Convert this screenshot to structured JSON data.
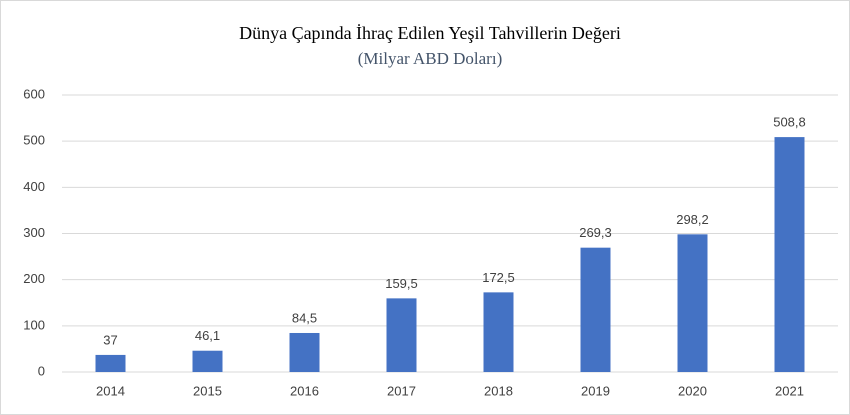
{
  "chart_data": {
    "type": "bar",
    "title": "Dünya Çapında İhraç Edilen Yeşil Tahvillerin Değeri",
    "subtitle": "(Milyar ABD Doları)",
    "categories": [
      "2014",
      "2015",
      "2016",
      "2017",
      "2018",
      "2019",
      "2020",
      "2021"
    ],
    "values": [
      37,
      46.1,
      84.5,
      159.5,
      172.5,
      269.3,
      298.2,
      508.8
    ],
    "value_labels": [
      "37",
      "46,1",
      "84,5",
      "159,5",
      "172,5",
      "269,3",
      "298,2",
      "508,8"
    ],
    "color": "#4472c4",
    "ylim": [
      0,
      600
    ],
    "yticks": [
      0,
      100,
      200,
      300,
      400,
      500,
      600
    ],
    "grid": true
  }
}
